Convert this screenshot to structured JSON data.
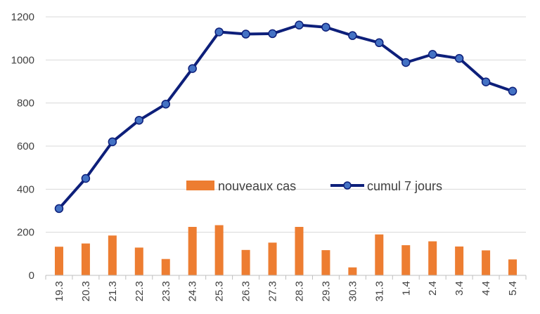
{
  "chart_data": {
    "type": "bar+line",
    "categories": [
      "19.3",
      "20.3",
      "21.3",
      "22.3",
      "23.3",
      "24.3",
      "25.3",
      "26.3",
      "27.3",
      "28.3",
      "29.3",
      "30.3",
      "31.3",
      "1.4",
      "2.4",
      "3.4",
      "4.4",
      "5.4"
    ],
    "series": [
      {
        "name": "nouveaux cas",
        "type": "bar",
        "color": "#ED7D31",
        "values": [
          133,
          148,
          185,
          129,
          76,
          225,
          233,
          118,
          152,
          225,
          117,
          37,
          190,
          140,
          158,
          134,
          116,
          74
        ]
      },
      {
        "name": "cumul 7 jours",
        "type": "line",
        "color": "#0D1F7A",
        "marker_color": "#4472C4",
        "values": [
          310,
          450,
          620,
          720,
          795,
          960,
          1130,
          1120,
          1122,
          1162,
          1152,
          1113,
          1080,
          988,
          1026,
          1007,
          898,
          855
        ]
      }
    ],
    "ylim": [
      0,
      1200
    ],
    "yticks": [
      0,
      200,
      400,
      600,
      800,
      1000,
      1200
    ],
    "grid": true,
    "legend_position": "center",
    "title": "",
    "xlabel": "",
    "ylabel": ""
  }
}
